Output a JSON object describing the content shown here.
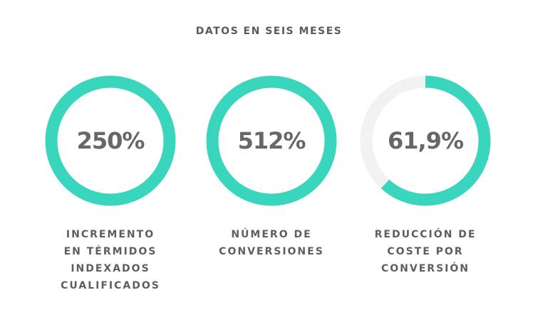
{
  "header": {
    "title": "DATOS EN SEIS MESES"
  },
  "colors": {
    "accent": "#3ad5bd",
    "track": "#f2f2f2",
    "text": "#676767"
  },
  "chart_data": {
    "type": "donut",
    "title": "DATOS EN SEIS MESES",
    "items": [
      {
        "value_label": "250%",
        "fill_fraction": 1.0,
        "label": "INCREMENTO\nEN TÉRMIDOS\nINDEXADOS\nCUALIFICADOS"
      },
      {
        "value_label": "512%",
        "fill_fraction": 1.0,
        "label": "NÚMERO DE\nCONVERSIONES"
      },
      {
        "value_label": "61,9%",
        "fill_fraction": 0.619,
        "label": "REDUCCIÓN DE\nCOSTE POR\nCONVERSIÓN"
      }
    ]
  }
}
